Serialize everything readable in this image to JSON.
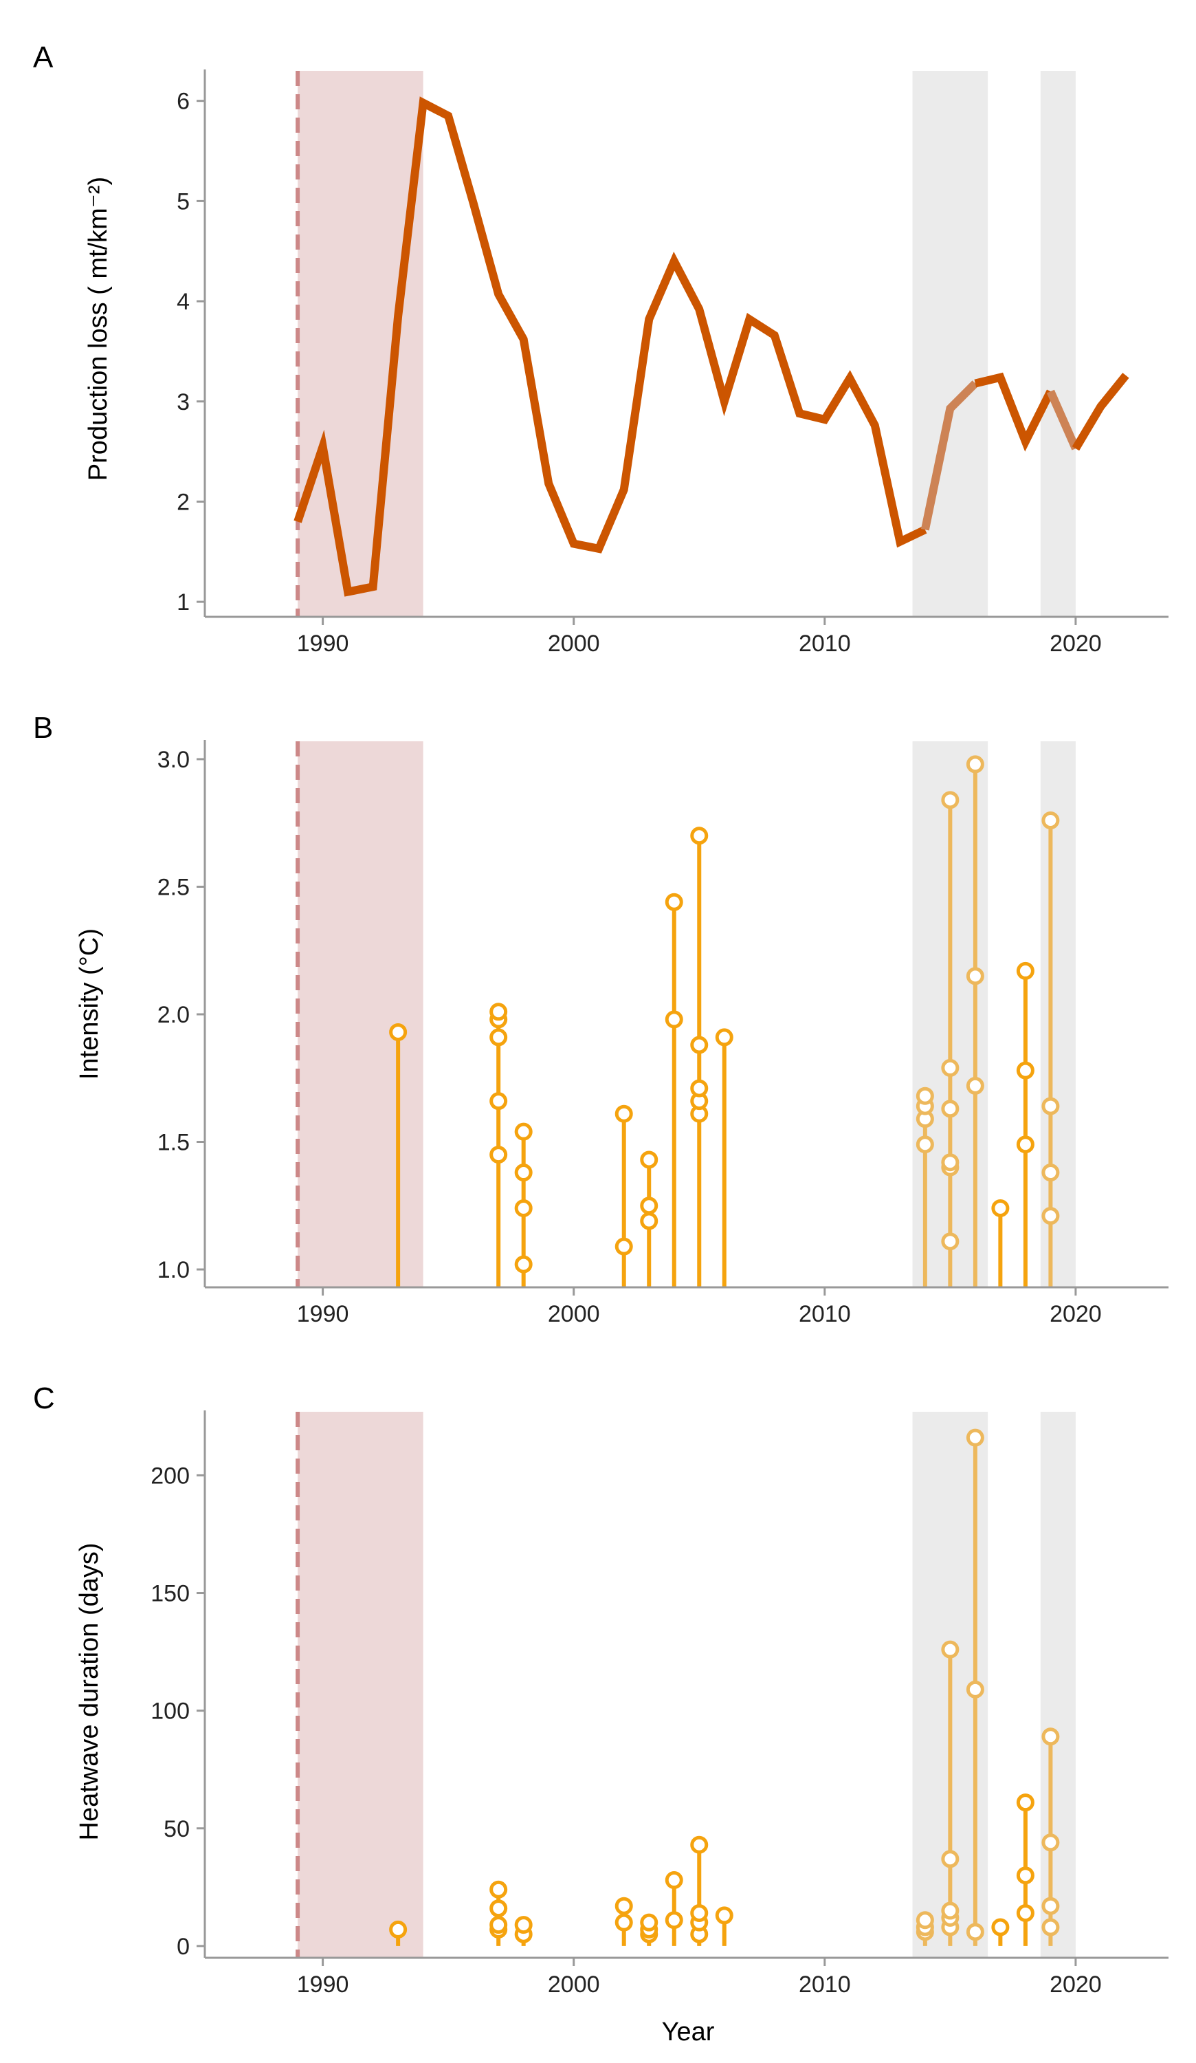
{
  "colors": {
    "loss_line": "#CC5500",
    "loss_line_highlight": "#CD8355",
    "heatwave": "#F5A30E",
    "heatwave_highlight": "#EDB85C",
    "pink_shade": "#EDD8D8",
    "grey_shade": "#EBEBEB",
    "dashed_line": "#CC8888",
    "axis": "#999999"
  },
  "shading": {
    "pink": [
      1989,
      1994
    ],
    "grey": [
      [
        2013.5,
        2016.5
      ],
      [
        2018.6,
        2020
      ]
    ],
    "dashed_year": 1989
  },
  "chart_data": [
    {
      "type": "line",
      "panel_label": "A",
      "ylabel": "Production loss ( mt/km⁻²)",
      "xlabel": "",
      "xlim": [
        1985.3,
        2023.7
      ],
      "ylim": [
        0.85,
        6.3
      ],
      "xticks": [
        1990,
        2000,
        2010,
        2020
      ],
      "yticks": [
        1,
        2,
        3,
        4,
        5,
        6
      ],
      "x": [
        1989,
        1990,
        1991,
        1992,
        1993,
        1994,
        1995,
        1996,
        1997,
        1998,
        1999,
        2000,
        2001,
        2002,
        2003,
        2004,
        2005,
        2006,
        2007,
        2008,
        2009,
        2010,
        2011,
        2012,
        2013,
        2014,
        2015,
        2016,
        2017,
        2018,
        2019,
        2020,
        2021,
        2022
      ],
      "y": [
        1.8,
        2.55,
        1.1,
        1.15,
        3.85,
        5.98,
        5.85,
        4.98,
        4.07,
        3.62,
        2.18,
        1.58,
        1.53,
        2.12,
        3.82,
        4.4,
        3.92,
        3.0,
        3.82,
        3.66,
        2.88,
        2.82,
        3.23,
        2.76,
        1.6,
        1.72,
        2.93,
        3.18,
        3.24,
        2.6,
        3.1,
        2.53,
        2.95,
        3.26
      ]
    },
    {
      "type": "scatter",
      "panel_label": "B",
      "ylabel": "Intensity (°C)",
      "xlabel": "",
      "xlim": [
        1985.3,
        2023.7
      ],
      "ylim": [
        0.93,
        3.07
      ],
      "xticks": [
        1990,
        2000,
        2010,
        2020
      ],
      "yticks": [
        1.0,
        1.5,
        2.0,
        2.5,
        3.0
      ],
      "ytick_labels": [
        "1.0",
        "1.5",
        "2.0",
        "2.5",
        "3.0"
      ],
      "baseline": 0.93,
      "events": [
        {
          "year": 1993,
          "values": [
            1.93
          ]
        },
        {
          "year": 1997,
          "values": [
            1.45,
            1.66,
            1.91,
            1.98,
            2.01
          ]
        },
        {
          "year": 1998,
          "values": [
            1.02,
            1.24,
            1.38,
            1.54
          ]
        },
        {
          "year": 2002,
          "values": [
            1.09,
            1.61
          ]
        },
        {
          "year": 2003,
          "values": [
            1.19,
            1.25,
            1.43
          ]
        },
        {
          "year": 2004,
          "values": [
            1.98,
            2.44
          ]
        },
        {
          "year": 2005,
          "values": [
            1.61,
            1.66,
            1.71,
            1.88,
            2.7
          ]
        },
        {
          "year": 2006,
          "values": [
            1.91
          ]
        },
        {
          "year": 2014,
          "values": [
            1.49,
            1.59,
            1.64,
            1.68
          ]
        },
        {
          "year": 2015,
          "values": [
            1.11,
            1.4,
            1.42,
            1.63,
            1.79,
            2.84
          ]
        },
        {
          "year": 2016,
          "values": [
            1.72,
            2.15,
            2.98
          ]
        },
        {
          "year": 2017,
          "values": [
            1.24
          ]
        },
        {
          "year": 2018,
          "values": [
            1.49,
            1.78,
            2.17
          ]
        },
        {
          "year": 2019,
          "values": [
            1.21,
            1.38,
            1.64,
            2.76
          ]
        }
      ]
    },
    {
      "type": "scatter",
      "panel_label": "C",
      "ylabel": "Heatwave duration (days)",
      "xlabel": "Year",
      "xlim": [
        1985.3,
        2023.7
      ],
      "ylim": [
        -5,
        227
      ],
      "xticks": [
        1990,
        2000,
        2010,
        2020
      ],
      "yticks": [
        0,
        50,
        100,
        150,
        200
      ],
      "baseline": 0,
      "events": [
        {
          "year": 1993,
          "values": [
            7
          ]
        },
        {
          "year": 1997,
          "values": [
            7,
            9,
            16,
            24
          ]
        },
        {
          "year": 1998,
          "values": [
            5,
            9
          ]
        },
        {
          "year": 2002,
          "values": [
            10,
            17
          ]
        },
        {
          "year": 2003,
          "values": [
            5,
            7,
            10
          ]
        },
        {
          "year": 2004,
          "values": [
            11,
            28
          ]
        },
        {
          "year": 2005,
          "values": [
            5,
            10,
            14,
            43
          ]
        },
        {
          "year": 2006,
          "values": [
            13
          ]
        },
        {
          "year": 2014,
          "values": [
            6,
            8,
            11
          ]
        },
        {
          "year": 2015,
          "values": [
            8,
            12,
            15,
            37,
            126
          ]
        },
        {
          "year": 2016,
          "values": [
            6,
            109,
            216
          ]
        },
        {
          "year": 2017,
          "values": [
            8
          ]
        },
        {
          "year": 2018,
          "values": [
            14,
            30,
            61
          ]
        },
        {
          "year": 2019,
          "values": [
            8,
            17,
            44,
            89
          ]
        }
      ]
    }
  ]
}
